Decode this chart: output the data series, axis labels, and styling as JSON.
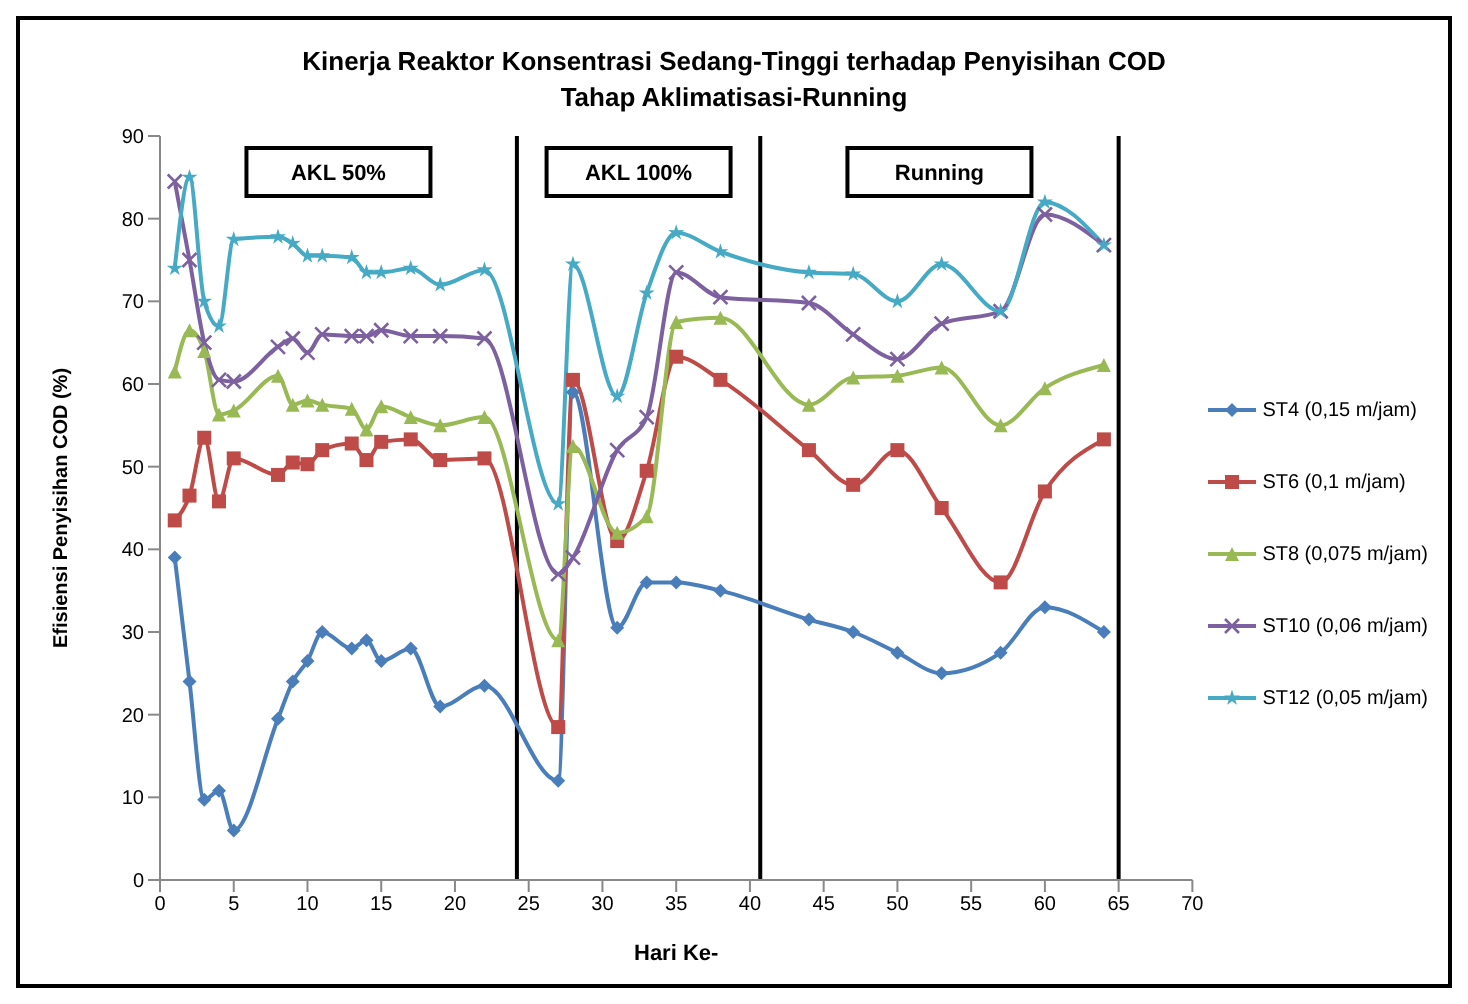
{
  "chart_data": {
    "type": "line",
    "title": "Kinerja Reaktor  Konsentrasi Sedang-Tinggi  terhadap Penyisihan COD",
    "subtitle": "Tahap Aklimatisasi-Running",
    "xlabel": "Hari Ke-",
    "ylabel": "Efisiensi Penyisihan COD (%)",
    "x": [
      1,
      2,
      3,
      4,
      5,
      8,
      9,
      10,
      11,
      13,
      14,
      15,
      17,
      19,
      22,
      27,
      28,
      31,
      33,
      35,
      38,
      44,
      47,
      50,
      53,
      57,
      60,
      64
    ],
    "series": [
      {
        "name": "ST4 (0,15 m/jam)",
        "color": "#4a7ebb",
        "marker": "diamond",
        "values": [
          39,
          24,
          9.7,
          10.8,
          6,
          19.5,
          24,
          26.5,
          30,
          28,
          29,
          26.5,
          28,
          21,
          23.5,
          12,
          59,
          30.5,
          36,
          36,
          35,
          31.5,
          30,
          27.5,
          25,
          27.5,
          33,
          30
        ]
      },
      {
        "name": "ST6 (0,1 m/jam)",
        "color": "#be4b48",
        "marker": "square",
        "values": [
          43.5,
          46.5,
          53.5,
          45.8,
          51,
          49,
          50.5,
          50.3,
          52,
          52.8,
          50.8,
          53,
          53.3,
          50.8,
          51,
          18.5,
          60.5,
          41,
          49.5,
          63.3,
          60.5,
          52,
          47.8,
          52,
          45,
          36,
          47,
          53.3
        ]
      },
      {
        "name": "ST8 (0,075 m/jam)",
        "color": "#98b954",
        "marker": "triangle",
        "values": [
          61.5,
          66.5,
          64,
          56.3,
          56.8,
          61,
          57.5,
          58,
          57.5,
          57,
          54.5,
          57.3,
          56,
          55,
          56,
          29,
          52.5,
          42,
          44,
          67.5,
          68,
          57.5,
          60.8,
          61,
          62,
          55,
          59.5,
          62.3
        ]
      },
      {
        "name": "ST10 (0,06 m/jam)",
        "color": "#7d60a0",
        "marker": "cross",
        "values": [
          84.5,
          75,
          65,
          60.5,
          60.3,
          64.5,
          65.5,
          63.8,
          66,
          65.8,
          65.8,
          66.5,
          65.8,
          65.8,
          65.5,
          37,
          39,
          52,
          56,
          73.5,
          70.5,
          69.8,
          66,
          63,
          67.3,
          68.8,
          80.5,
          76.8
        ]
      },
      {
        "name": "ST12 (0,05 m/jam)",
        "color": "#46aac5",
        "marker": "star",
        "values": [
          74,
          85,
          70,
          67,
          77.5,
          77.8,
          77,
          75.5,
          75.5,
          75.3,
          73.5,
          73.5,
          74,
          72,
          73.8,
          45.5,
          74.5,
          58.5,
          71,
          78.3,
          76,
          73.5,
          73.3,
          70,
          74.5,
          68.8,
          82,
          76.8
        ]
      }
    ],
    "ref_lines": [
      {
        "axis": "x",
        "value": 24.2
      },
      {
        "axis": "x",
        "value": 40.7
      },
      {
        "axis": "x",
        "value": 65
      }
    ],
    "annotations": [
      "AKL 50%",
      "AKL 100%",
      "Running"
    ],
    "xlim": [
      0,
      70
    ],
    "xticks": [
      0,
      5,
      10,
      15,
      20,
      25,
      30,
      35,
      40,
      45,
      50,
      55,
      60,
      65,
      70
    ],
    "ylim": [
      0,
      90
    ],
    "yticks": [
      0,
      10,
      20,
      30,
      40,
      50,
      60,
      70,
      80,
      90
    ],
    "grid": false,
    "legend": "right",
    "line_style": "solid"
  }
}
